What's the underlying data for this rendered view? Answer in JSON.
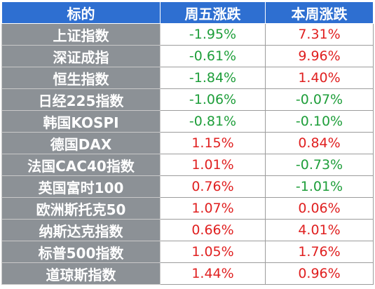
{
  "colors": {
    "header_bg": "#2e6fd1",
    "name_bg": "#8c9196",
    "up": "#e02020",
    "down": "#1e9e3a"
  },
  "table": {
    "headers": [
      "标的",
      "周五涨跌",
      "本周涨跌"
    ],
    "rows": [
      {
        "name": "上证指数",
        "friday": "-1.95%",
        "week": "7.31%"
      },
      {
        "name": "深证成指",
        "friday": "-0.61%",
        "week": "9.96%"
      },
      {
        "name": "恒生指数",
        "friday": "-1.84%",
        "week": "1.40%"
      },
      {
        "name": "日经225指数",
        "friday": "-1.06%",
        "week": "-0.07%"
      },
      {
        "name": "韩国KOSPI",
        "friday": "-0.81%",
        "week": "-0.10%"
      },
      {
        "name": "德国DAX",
        "friday": "1.15%",
        "week": "0.84%"
      },
      {
        "name": "法国CAC40指数",
        "friday": "1.01%",
        "week": "-0.73%"
      },
      {
        "name": "英国富时100",
        "friday": "0.76%",
        "week": "-1.01%"
      },
      {
        "name": "欧洲斯托克50",
        "friday": "1.07%",
        "week": "0.06%"
      },
      {
        "name": "纳斯达克指数",
        "friday": "0.66%",
        "week": "4.01%"
      },
      {
        "name": "标普500指数",
        "friday": "1.05%",
        "week": "1.76%"
      },
      {
        "name": "道琼斯指数",
        "friday": "1.44%",
        "week": "0.96%"
      }
    ]
  }
}
